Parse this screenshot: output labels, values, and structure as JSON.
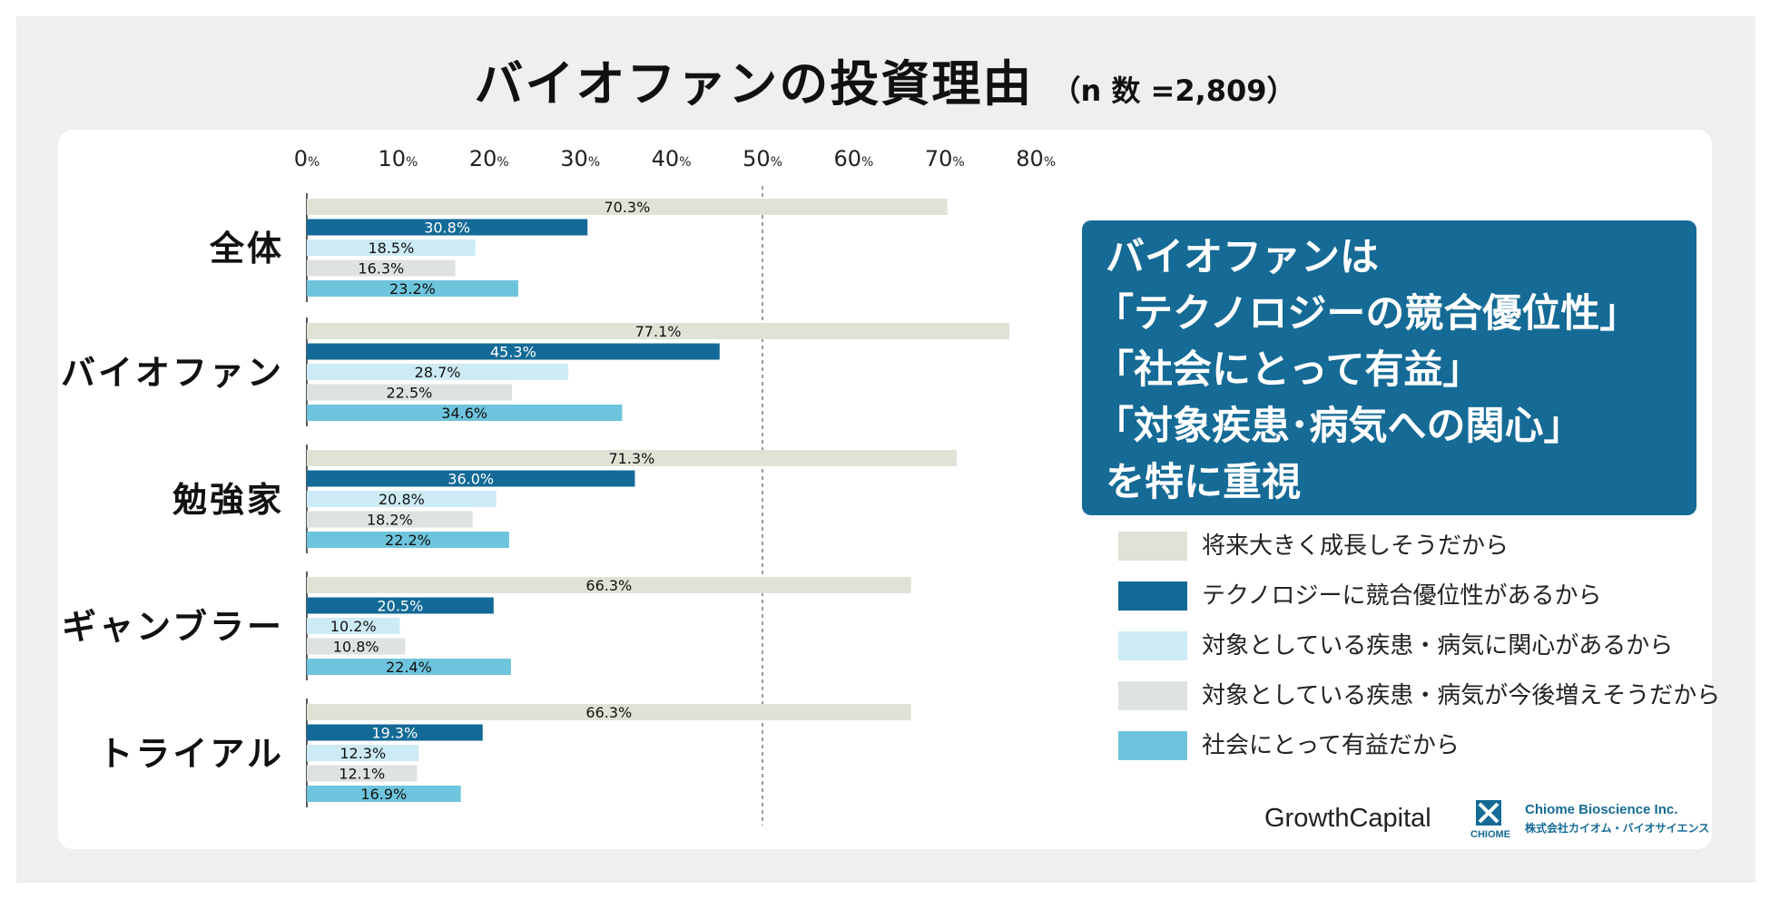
{
  "header": {
    "title": "バイオファンの投資理由",
    "sample": "（n 数 =2,809）"
  },
  "chart_data": {
    "type": "bar",
    "orientation": "horizontal",
    "title": "バイオファンの投資理由",
    "x_axis": {
      "range": [
        0,
        80
      ],
      "ticks": [
        0,
        10,
        20,
        30,
        40,
        50,
        60,
        70,
        80
      ],
      "tick_suffix": "%",
      "reference_line": 50
    },
    "categories": [
      "全体",
      "バイオファン",
      "勉強家",
      "ギャンブラー",
      "トライアル"
    ],
    "series": [
      {
        "name": "将来大きく成長しそうだから",
        "color": "#dfe3d6",
        "values": [
          70.3,
          77.1,
          71.3,
          66.3,
          66.3
        ]
      },
      {
        "name": "テクノロジーに競合優位性があるから",
        "color": "#136a97",
        "values": [
          30.8,
          45.3,
          36.0,
          20.5,
          19.3
        ]
      },
      {
        "name": "対象としている疾患・病気に関心があるから",
        "color": "#cdebf4",
        "values": [
          18.5,
          28.7,
          20.8,
          10.2,
          12.3
        ]
      },
      {
        "name": "対象としている疾患・病気が今後増えそうだから",
        "color": "#dee2e2",
        "values": [
          16.3,
          22.5,
          18.2,
          10.8,
          12.1
        ]
      },
      {
        "name": "社会にとって有益だから",
        "color": "#6ec4dc",
        "values": [
          23.2,
          34.6,
          22.2,
          22.4,
          16.9
        ]
      }
    ],
    "value_labels": [
      [
        "70.3%",
        "30.8%",
        "18.5%",
        "16.3%",
        "23.2%"
      ],
      [
        "77.1%",
        "45.3%",
        "28.7%",
        "22.5%",
        "34.6%"
      ],
      [
        "71.3%",
        "36.0%",
        "20.8%",
        "18.2%",
        "22.2%"
      ],
      [
        "66.3%",
        "20.5%",
        "10.2%",
        "10.8%",
        "22.4%"
      ],
      [
        "66.3%",
        "19.3%",
        "12.3%",
        "12.1%",
        "16.9%"
      ]
    ],
    "legend_position": "right"
  },
  "callout": {
    "lines": [
      "バイオファンは",
      "「テクノロジーの競合優位性」",
      "「社会にとって有益」",
      "「対象疾患･病気への関心」",
      "を特に重視"
    ],
    "color": "#156b96"
  },
  "logos": {
    "growth_capital": "GrowthCapital",
    "chiome_mark": "CHIOME",
    "chiome_en": "Chiome Bioscience Inc.",
    "chiome_jp": "株式会社カイオム・バイオサイエンス"
  }
}
